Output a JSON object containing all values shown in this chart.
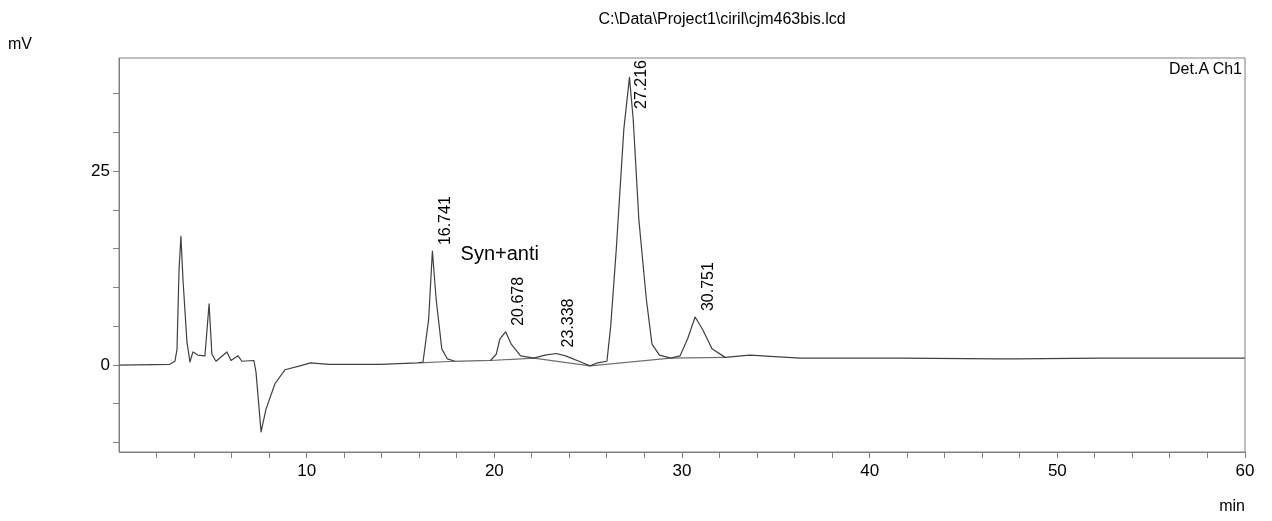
{
  "chart_data": {
    "type": "line",
    "title": "C:\\Data\\Project1\\ciril\\cjm463bis.lcd",
    "xlabel": "min",
    "ylabel": "mV",
    "xlim": [
      0,
      60
    ],
    "xticks": [
      {
        "value": 2,
        "label": null
      },
      {
        "value": 4,
        "label": null
      },
      {
        "value": 6,
        "label": null
      },
      {
        "value": 8,
        "label": null
      },
      10,
      {
        "value": 12,
        "label": null
      },
      {
        "value": 14,
        "label": null
      },
      {
        "value": 16,
        "label": null
      },
      {
        "value": 18,
        "label": null
      },
      20,
      {
        "value": 22,
        "label": null
      },
      {
        "value": 24,
        "label": null
      },
      {
        "value": 26,
        "label": null
      },
      {
        "value": 28,
        "label": null
      },
      30,
      {
        "value": 32,
        "label": null
      },
      {
        "value": 34,
        "label": null
      },
      {
        "value": 36,
        "label": null
      },
      {
        "value": 38,
        "label": null
      },
      40,
      {
        "value": 42,
        "label": null
      },
      {
        "value": 44,
        "label": null
      },
      {
        "value": 46,
        "label": null
      },
      {
        "value": 48,
        "label": null
      },
      50,
      {
        "value": 52,
        "label": null
      },
      {
        "value": 54,
        "label": null
      },
      {
        "value": 56,
        "label": null
      },
      {
        "value": 58,
        "label": null
      },
      60
    ],
    "ylim": [
      -11.2,
      39.6
    ],
    "yticks": [
      {
        "value": -10,
        "label": null
      },
      {
        "value": -5,
        "label": null
      },
      0,
      {
        "value": 5,
        "label": null
      },
      {
        "value": 10,
        "label": null
      },
      {
        "value": 15,
        "label": null
      },
      {
        "value": 20,
        "label": null
      },
      25,
      {
        "value": 30,
        "label": null
      },
      {
        "value": 35,
        "label": null
      }
    ],
    "grid": false,
    "legend": false,
    "marker": "none",
    "line_style": "solid",
    "series": [
      {
        "color": "#404040",
        "x": [
          0,
          2.7,
          2.98,
          3.09,
          3.2,
          3.3,
          3.41,
          3.62,
          3.78,
          3.94,
          4.2,
          4.58,
          4.8,
          4.95,
          5.17,
          5.75,
          5.97,
          6.34,
          6.55,
          7.19,
          7.3,
          7.57,
          7.83,
          8.31,
          8.84,
          9.64,
          10.2,
          11.2,
          13.9,
          15.9,
          16.2,
          16.5,
          16.7,
          16.9,
          17.2,
          17.5,
          17.9,
          19.8,
          20.1,
          20.3,
          20.6,
          20.9,
          21.4,
          22.1,
          22.7,
          23.3,
          23.8,
          24.7,
          25.1,
          25.5,
          26.0,
          26.2,
          26.5,
          26.9,
          27.2,
          27.4,
          27.7,
          28.1,
          28.4,
          28.8,
          29.4,
          29.9,
          30.3,
          30.7,
          31.1,
          31.6,
          32.3,
          33.6,
          36.3,
          41.6,
          46.9,
          52.3,
          60
        ],
        "values": [
          0,
          0.1,
          0.5,
          2,
          12.4,
          16.6,
          11,
          3,
          0.4,
          1.7,
          1.3,
          1.2,
          7.9,
          1.4,
          0.5,
          1.7,
          0.6,
          1.2,
          0.5,
          0.6,
          -0.9,
          -8.6,
          -5.7,
          -2.4,
          -0.6,
          -0.1,
          0.3,
          0.1,
          0.1,
          0.3,
          0.4,
          5.9,
          14.7,
          8.5,
          2.1,
          0.8,
          0.5,
          0.6,
          1.4,
          3.4,
          4.3,
          2.7,
          1.2,
          0.9,
          1.3,
          1.5,
          1.2,
          0.3,
          -0.1,
          0.3,
          0.5,
          5,
          15,
          30.4,
          37.1,
          31.7,
          18.8,
          8.5,
          2.7,
          1.3,
          0.9,
          1.2,
          3.4,
          6.2,
          4.6,
          2.1,
          1,
          1.3,
          0.9,
          0.9,
          0.8,
          0.9,
          0.9
        ]
      },
      {
        "color": "#707070",
        "x": [
          16.0,
          17.9,
          18.8,
          19.8,
          22.1,
          25.1,
          29.4,
          32.3
        ],
        "values": [
          0.3,
          0.5,
          null,
          0.6,
          0.9,
          -0.1,
          0.9,
          1.0
        ]
      }
    ],
    "annotations": [
      "Det.A Ch1",
      "Syn+anti",
      {
        "text": "16.741",
        "x": 16.741,
        "y": 14.7
      },
      {
        "text": "20.678",
        "x": 20.678,
        "y": 4.3
      },
      {
        "text": "23.338",
        "x": 23.338,
        "y": 1.5
      },
      {
        "text": "27.216",
        "x": 27.216,
        "y": 37.1
      },
      {
        "text": "30.751",
        "x": 30.751,
        "y": 6.2
      }
    ]
  }
}
